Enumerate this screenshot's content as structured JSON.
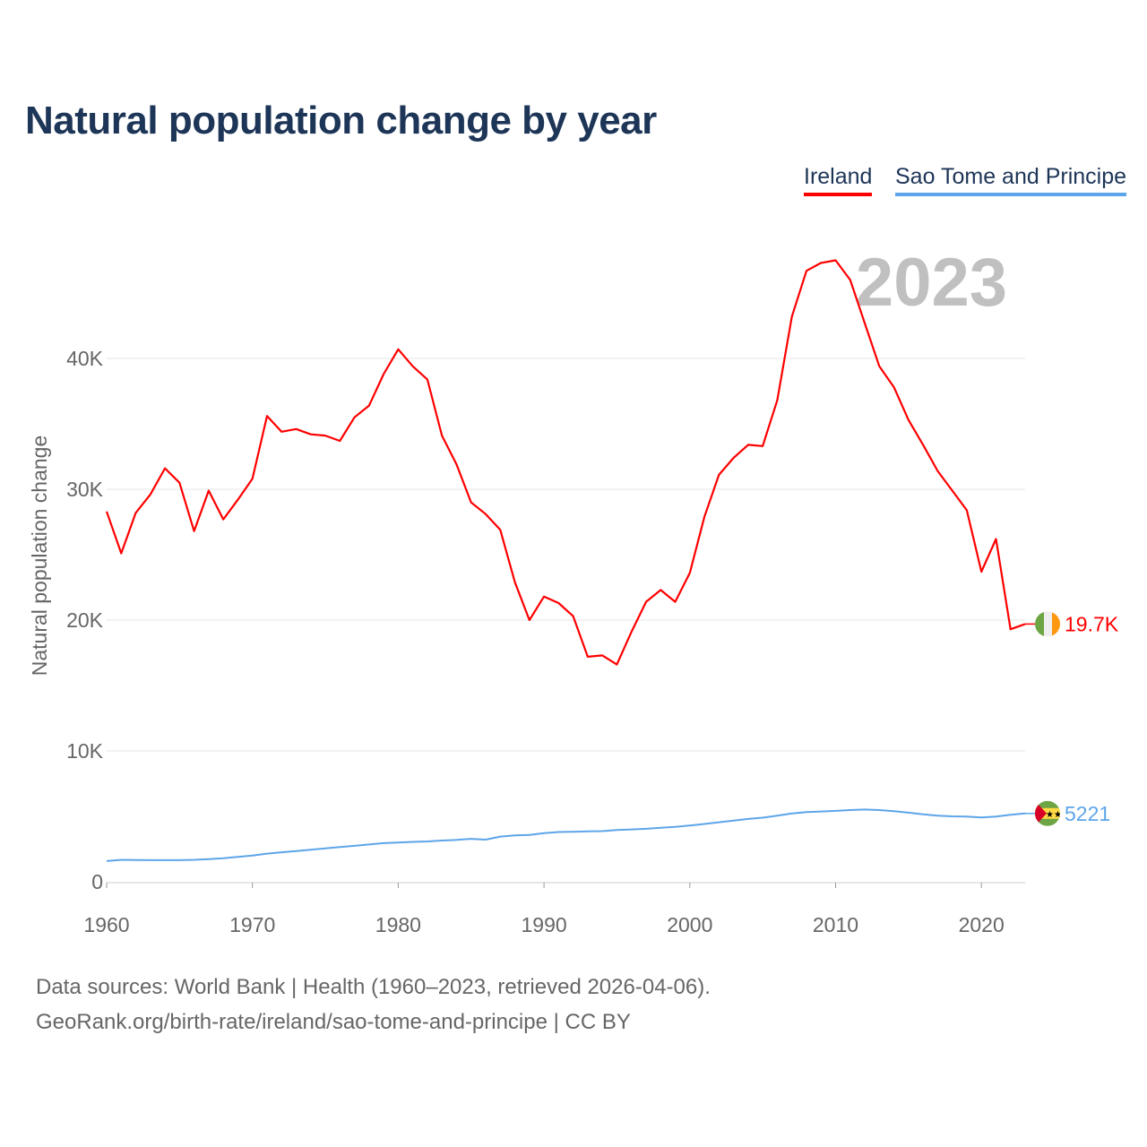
{
  "chart_data": {
    "type": "line",
    "title": "Natural population change by year",
    "xlabel": "",
    "ylabel": "Natural population change",
    "xlim": [
      1960,
      2023
    ],
    "ylim": [
      0,
      50000
    ],
    "x_ticks": [
      "1960",
      "1970",
      "1980",
      "1990",
      "2000",
      "2010",
      "2020"
    ],
    "x_tick_values": [
      1960,
      1970,
      1980,
      1990,
      2000,
      2010,
      2020
    ],
    "y_ticks": [
      "0",
      "10K",
      "20K",
      "30K",
      "40K"
    ],
    "y_tick_values": [
      0,
      10000,
      20000,
      30000,
      40000
    ],
    "grid": true,
    "legend_position": "top-right",
    "year_watermark": "2023",
    "x": [
      1960,
      1961,
      1962,
      1963,
      1964,
      1965,
      1966,
      1967,
      1968,
      1969,
      1970,
      1971,
      1972,
      1973,
      1974,
      1975,
      1976,
      1977,
      1978,
      1979,
      1980,
      1981,
      1982,
      1983,
      1984,
      1985,
      1986,
      1987,
      1988,
      1989,
      1990,
      1991,
      1992,
      1993,
      1994,
      1995,
      1996,
      1997,
      1998,
      1999,
      2000,
      2001,
      2002,
      2003,
      2004,
      2005,
      2006,
      2007,
      2008,
      2009,
      2010,
      2011,
      2012,
      2013,
      2014,
      2015,
      2016,
      2017,
      2018,
      2019,
      2020,
      2021,
      2022,
      2023
    ],
    "series": [
      {
        "name": "Ireland",
        "color": "#ff0000",
        "end_label": "19.7K",
        "values": [
          28300,
          25100,
          28200,
          29600,
          31600,
          30500,
          26800,
          29900,
          27700,
          29200,
          30800,
          35600,
          34400,
          34600,
          34200,
          34100,
          33700,
          35500,
          36400,
          38800,
          40700,
          39400,
          38400,
          34100,
          31900,
          29000,
          28100,
          26900,
          22900,
          20000,
          21800,
          21300,
          20300,
          17200,
          17300,
          16600,
          19100,
          21400,
          22300,
          21400,
          23600,
          27900,
          31100,
          32400,
          33400,
          33300,
          36800,
          43200,
          46700,
          47300,
          47500,
          46000,
          42700,
          39400,
          37800,
          35300,
          33400,
          31400,
          29900,
          28400,
          23700,
          26200,
          19300,
          19700
        ]
      },
      {
        "name": "Sao Tome and Principe",
        "color": "#5da5ea",
        "end_label": "5221",
        "values": [
          1580,
          1680,
          1660,
          1650,
          1650,
          1650,
          1680,
          1730,
          1800,
          1900,
          2000,
          2150,
          2250,
          2350,
          2450,
          2550,
          2650,
          2750,
          2850,
          2950,
          3000,
          3050,
          3080,
          3150,
          3200,
          3280,
          3220,
          3450,
          3550,
          3580,
          3720,
          3800,
          3820,
          3850,
          3870,
          3950,
          4000,
          4050,
          4120,
          4200,
          4300,
          4420,
          4550,
          4680,
          4800,
          4900,
          5050,
          5220,
          5320,
          5370,
          5420,
          5480,
          5520,
          5480,
          5400,
          5280,
          5150,
          5050,
          5000,
          4980,
          4920,
          4980,
          5120,
          5221
        ]
      }
    ]
  },
  "footer": {
    "line1": "Data sources: World Bank | Health (1960–2023, retrieved 2026-04-06).",
    "line2": "GeoRank.org/birth-rate/ireland/sao-tome-and-principe | CC BY"
  }
}
